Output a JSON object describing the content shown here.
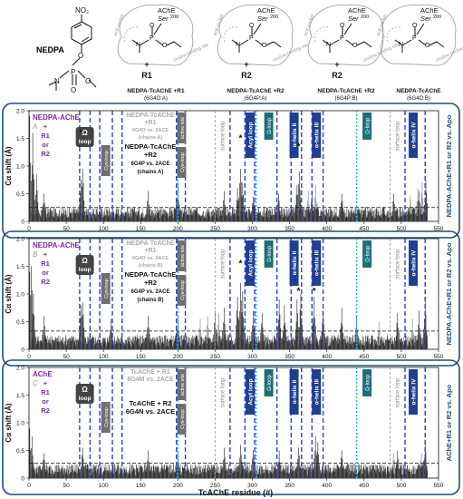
{
  "header": {
    "compound_label": "NEDPA",
    "no2_label": "NO₂",
    "o_label": "O",
    "p_label": "P",
    "n_label": "N",
    "ache_label": "AChE",
    "ser_label": "Ser",
    "ser_num": "200",
    "acyl_pocket": "acyl pocket",
    "choline_site": "choline binding site",
    "panels": [
      {
        "oxime": "R1",
        "caption": "NEDPA-TcAChE +R1",
        "pdb": "(6G4O:A)",
        "has_oxime": true
      },
      {
        "oxime": "R2",
        "caption": "NEDPA-TcAChE +R2",
        "pdb": "(6G4P:A)",
        "has_oxime": true
      },
      {
        "oxime": "R2",
        "caption": "NEDPA-TcAChE +R2",
        "pdb": "(6G4P:B)",
        "has_oxime": true
      },
      {
        "oxime": "",
        "caption": "NEDPA-TcAChE",
        "pdb": "(6G4O:B)",
        "has_oxime": false
      }
    ]
  },
  "chart_data": [
    {
      "type": "bar",
      "panel_letter": "A",
      "ylabel": "Cα shift (Å)",
      "xlabel": "",
      "xlim": [
        0,
        550
      ],
      "ylim": [
        0,
        2.0
      ],
      "yticks": [
        "0",
        "0.5",
        "1.0",
        "1.5",
        "2.0"
      ],
      "xticks": [
        "0",
        "50",
        "100",
        "150",
        "200",
        "250",
        "300",
        "350",
        "400",
        "450",
        "500",
        "550"
      ],
      "threshold": 0.25,
      "left_label": [
        "NEDPA-AChE",
        "+",
        "R1",
        "or",
        "R2"
      ],
      "right_label": "NEDPA-AChE+R1 or R2 vs. Apo",
      "legend_grey": [
        "NEDPA-TcAChE",
        "+R1",
        "6G4O vs. 2ACE",
        "(chains A)"
      ],
      "legend_black": [
        "NEDPA-TcAChE",
        "+R2",
        "6G4P vs. 2ACE",
        "(chains A)"
      ],
      "asterisks": [
        {
          "x": 70,
          "y": 1.55
        },
        {
          "x": 284,
          "y": 1.45
        },
        {
          "x": 362,
          "y": 1.3
        }
      ],
      "peaks": [
        {
          "x": 1,
          "y": 1.9
        },
        {
          "x": 5,
          "y": 1.6
        },
        {
          "x": 10,
          "y": 0.85
        },
        {
          "x": 20,
          "y": 0.5
        },
        {
          "x": 70,
          "y": 0.75
        },
        {
          "x": 72,
          "y": 0.95
        },
        {
          "x": 160,
          "y": 0.55
        },
        {
          "x": 200,
          "y": 0.7
        },
        {
          "x": 262,
          "y": 0.55
        },
        {
          "x": 280,
          "y": 0.6
        },
        {
          "x": 284,
          "y": 0.95
        },
        {
          "x": 287,
          "y": 0.7
        },
        {
          "x": 301,
          "y": 0.45
        },
        {
          "x": 335,
          "y": 0.5
        },
        {
          "x": 360,
          "y": 0.65
        },
        {
          "x": 363,
          "y": 0.9
        },
        {
          "x": 380,
          "y": 0.55
        },
        {
          "x": 420,
          "y": 0.5
        },
        {
          "x": 490,
          "y": 0.5
        },
        {
          "x": 524,
          "y": 0.55
        },
        {
          "x": 533,
          "y": 0.75
        }
      ],
      "grey_peaks": [
        {
          "x": 375,
          "y": 0.55
        },
        {
          "x": 385,
          "y": 0.65
        },
        {
          "x": 512,
          "y": 0.45
        },
        {
          "x": 522,
          "y": 0.6
        },
        {
          "x": 528,
          "y": 0.7
        }
      ]
    },
    {
      "type": "bar",
      "panel_letter": "B",
      "ylabel": "Cα shift (Å)",
      "xlabel": "",
      "xlim": [
        0,
        550
      ],
      "ylim": [
        0,
        2.0
      ],
      "yticks": [
        "0",
        "0.5",
        "1.0",
        "1.5",
        "2.0"
      ],
      "xticks": [
        "0",
        "50",
        "100",
        "150",
        "200",
        "250",
        "300",
        "350",
        "400",
        "450",
        "500",
        "550"
      ],
      "threshold": 0.33,
      "left_label": [
        "NEDPA-AChE",
        "+",
        "R1",
        "or",
        "R2"
      ],
      "right_label": "NEDPA-AChE+R1 or R2 vs. Apo",
      "legend_grey": [
        "NEDPA-TcAChE",
        "+R1",
        "6G4O vs. 2ACE",
        "(chains B)"
      ],
      "legend_black": [
        "NEDPA-TcAChE",
        "+R2",
        "6G4P vs. 2ACE",
        "(chains B)"
      ],
      "asterisks": [
        {
          "x": 284,
          "y": 1.5
        },
        {
          "x": 362,
          "y": 1.0
        },
        {
          "x": 383,
          "y": 1.0
        }
      ],
      "peaks": [
        {
          "x": 1,
          "y": 1.4
        },
        {
          "x": 3,
          "y": 1.5
        },
        {
          "x": 6,
          "y": 1.0
        },
        {
          "x": 20,
          "y": 0.6
        },
        {
          "x": 70,
          "y": 0.8
        },
        {
          "x": 72,
          "y": 0.85
        },
        {
          "x": 110,
          "y": 0.55
        },
        {
          "x": 160,
          "y": 0.6
        },
        {
          "x": 200,
          "y": 0.6
        },
        {
          "x": 250,
          "y": 0.7
        },
        {
          "x": 262,
          "y": 0.75
        },
        {
          "x": 280,
          "y": 0.95
        },
        {
          "x": 284,
          "y": 1.2
        },
        {
          "x": 287,
          "y": 1.05
        },
        {
          "x": 301,
          "y": 0.7
        },
        {
          "x": 313,
          "y": 0.65
        },
        {
          "x": 336,
          "y": 0.9
        },
        {
          "x": 343,
          "y": 0.8
        },
        {
          "x": 360,
          "y": 0.9
        },
        {
          "x": 365,
          "y": 1.0
        },
        {
          "x": 383,
          "y": 0.95
        },
        {
          "x": 395,
          "y": 0.7
        },
        {
          "x": 420,
          "y": 0.75
        },
        {
          "x": 440,
          "y": 0.6
        },
        {
          "x": 495,
          "y": 0.65
        },
        {
          "x": 524,
          "y": 0.7
        },
        {
          "x": 532,
          "y": 0.9
        }
      ],
      "grey_peaks": [
        {
          "x": 230,
          "y": 0.55
        },
        {
          "x": 240,
          "y": 0.6
        },
        {
          "x": 255,
          "y": 0.65
        },
        {
          "x": 470,
          "y": 0.5
        },
        {
          "x": 515,
          "y": 0.55
        }
      ]
    },
    {
      "type": "bar",
      "panel_letter": "C",
      "ylabel": "Cα shift (Å)",
      "xlabel": "TcAChE residue (#)",
      "xlim": [
        0,
        550
      ],
      "ylim": [
        0,
        2.0
      ],
      "yticks": [
        "0",
        "0.5",
        "1.0",
        "1.5",
        "2.0"
      ],
      "xticks": [
        "0",
        "50",
        "100",
        "150",
        "200",
        "250",
        "300",
        "350",
        "400",
        "450",
        "500",
        "550"
      ],
      "threshold": 0.27,
      "left_label": [
        "AChE",
        "+",
        "R1",
        "or",
        "R2"
      ],
      "right_label": "AChE+R1 or R2 vs. Apo",
      "legend_grey": [
        "TcAChE + R1",
        "6G4M vs. 2ACE"
      ],
      "legend_black": [
        "TcAChE + R2",
        "6G4N vs. 2ACE"
      ],
      "asterisks": [],
      "peaks": [
        {
          "x": 1,
          "y": 0.9
        },
        {
          "x": 4,
          "y": 0.75
        },
        {
          "x": 20,
          "y": 0.45
        },
        {
          "x": 72,
          "y": 0.55
        },
        {
          "x": 160,
          "y": 0.5
        },
        {
          "x": 200,
          "y": 0.45
        },
        {
          "x": 262,
          "y": 0.55
        },
        {
          "x": 284,
          "y": 0.6
        },
        {
          "x": 301,
          "y": 0.5
        },
        {
          "x": 336,
          "y": 0.5
        },
        {
          "x": 362,
          "y": 0.55
        },
        {
          "x": 385,
          "y": 0.75
        },
        {
          "x": 388,
          "y": 0.65
        },
        {
          "x": 420,
          "y": 0.5
        },
        {
          "x": 495,
          "y": 0.5
        },
        {
          "x": 532,
          "y": 0.65
        }
      ],
      "grey_peaks": [
        {
          "x": 490,
          "y": 0.45
        },
        {
          "x": 527,
          "y": 0.45
        }
      ]
    }
  ],
  "regions": {
    "blue_lines": [
      68,
      82,
      95,
      112,
      125,
      198,
      210,
      270,
      290,
      303,
      333,
      352,
      366,
      380,
      395,
      505,
      532
    ],
    "cyan_lines": [
      200,
      305,
      440
    ],
    "grey_lines": [
      250,
      485
    ],
    "blue_labels": [
      {
        "x": 297,
        "text": "Acyl loop"
      },
      {
        "x": 356,
        "text": "α-helix II"
      },
      {
        "x": 386,
        "text": "α-helix III"
      },
      {
        "x": 516,
        "text": "α-helix IV"
      }
    ],
    "cyan_labels": [
      {
        "x": 322,
        "text": "Ω-loop"
      },
      {
        "x": 454,
        "text": "Ω-loop"
      }
    ],
    "omega_box": {
      "x": 75,
      "text": "Ω loop"
    },
    "grey_boxes": [
      {
        "x": 103,
        "text": "Cys-loop"
      },
      {
        "x": 205,
        "text": "active site"
      },
      {
        "x": 205,
        "text": "Cys-loop"
      }
    ],
    "surface_loop_labels": [
      {
        "x": 262,
        "text": "surface loop"
      },
      {
        "x": 497,
        "text": "surface loop"
      }
    ]
  },
  "colors": {
    "panel_border": "#1f4e79",
    "navy": "#1f3f8f",
    "blue_dash": "#2a3fd4",
    "cyan": "#29b6d8",
    "grey_bar": "#9b9b9b",
    "black_bar": "#111111",
    "purple": "#7a2c9a",
    "teal_box": "#1e6e78",
    "grey_box": "#6f6f6f"
  }
}
